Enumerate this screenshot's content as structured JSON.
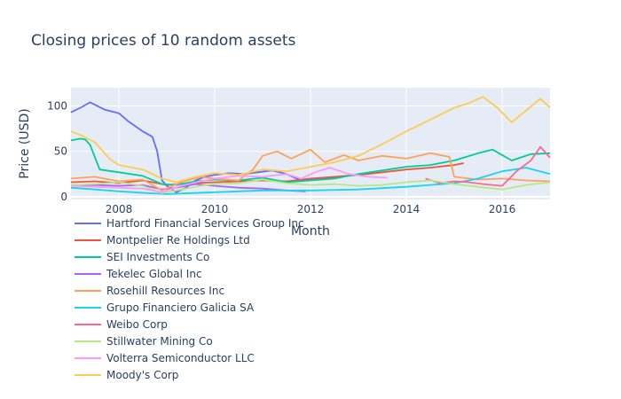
{
  "chart_data": {
    "type": "line",
    "title": "Closing prices of 10 random assets",
    "xlabel": "Month",
    "ylabel": "Price (USD)",
    "xlim": [
      2007.0,
      2017.0
    ],
    "ylim": [
      -3,
      120
    ],
    "x_ticks": [
      2008,
      2010,
      2012,
      2014,
      2016
    ],
    "y_ticks": [
      0,
      50,
      100
    ],
    "grid": true,
    "legend_position": "bottom-left",
    "series": [
      {
        "name": "Hartford Financial Services Group Inc",
        "color": "#636efa",
        "x": [
          2007.0,
          2007.2,
          2007.4,
          2007.7,
          2008.0,
          2008.2,
          2008.5,
          2008.7,
          2008.8,
          2008.9,
          2009.0,
          2009.2,
          2009.4,
          2009.6,
          2009.8,
          2010.0,
          2010.3,
          2010.6,
          2010.9,
          2011.2,
          2011.5,
          2011.8,
          2012.2,
          2012.6
        ],
        "y": [
          93,
          98,
          104,
          96,
          92,
          83,
          72,
          66,
          50,
          18,
          12,
          5,
          10,
          18,
          22,
          24,
          26,
          25,
          27,
          29,
          25,
          18,
          20,
          21
        ]
      },
      {
        "name": "Montpelier Re Holdings Ltd",
        "color": "#EF553B",
        "x": [
          2007.0,
          2007.5,
          2008.0,
          2008.5,
          2009.0,
          2009.5,
          2010.0,
          2010.5,
          2011.0,
          2011.5,
          2012.0,
          2012.5,
          2013.0,
          2013.5,
          2014.0,
          2014.5,
          2015.0,
          2015.2
        ],
        "y": [
          16,
          17,
          15,
          18,
          13,
          15,
          16,
          17,
          18,
          17,
          20,
          22,
          24,
          27,
          30,
          32,
          35,
          37
        ]
      },
      {
        "name": "SEI Investments Co",
        "color": "#00cc96",
        "x": [
          2007.0,
          2007.2,
          2007.3,
          2007.4,
          2007.6,
          2008.0,
          2008.5,
          2008.9,
          2009.2,
          2009.6,
          2010.0,
          2010.5,
          2011.0,
          2011.5,
          2012.0,
          2012.5,
          2013.0,
          2013.5,
          2014.0,
          2014.5,
          2015.0,
          2015.5,
          2015.8,
          2016.2,
          2016.6,
          2017.0
        ],
        "y": [
          62,
          64,
          63,
          57,
          30,
          27,
          23,
          14,
          13,
          17,
          19,
          18,
          21,
          16,
          18,
          20,
          25,
          29,
          33,
          35,
          40,
          48,
          52,
          40,
          47,
          48
        ]
      },
      {
        "name": "Tekelec Global Inc",
        "color": "#ab63fa",
        "x": [
          2007.0,
          2007.5,
          2008.0,
          2008.5,
          2008.9,
          2009.2,
          2009.6,
          2010.0,
          2010.5,
          2011.0,
          2011.5,
          2011.9
        ],
        "y": [
          12,
          13,
          12,
          13,
          8,
          10,
          14,
          12,
          10,
          9,
          7,
          6
        ]
      },
      {
        "name": "Rosehill Resources Inc",
        "color": "#FFA15A",
        "x": [
          2007.0,
          2007.5,
          2008.0,
          2008.5,
          2008.9,
          2009.3,
          2009.7,
          2010.0,
          2010.5,
          2010.8,
          2011.0,
          2011.3,
          2011.6,
          2012.0,
          2012.3,
          2012.7,
          2013.0,
          2013.5,
          2014.0,
          2014.5,
          2014.9,
          2015.0,
          2015.5,
          2016.0,
          2016.5,
          2017.0
        ],
        "y": [
          20,
          22,
          17,
          19,
          7,
          16,
          22,
          20,
          18,
          30,
          45,
          50,
          42,
          52,
          38,
          46,
          40,
          45,
          42,
          48,
          44,
          22,
          19,
          20,
          18,
          17
        ]
      },
      {
        "name": "Grupo Financiero Galicia SA",
        "color": "#19d3f3",
        "x": [
          2007.0,
          2007.5,
          2008.0,
          2008.6,
          2009.0,
          2009.5,
          2010.0,
          2010.5,
          2011.0,
          2012.0,
          2013.0,
          2014.0,
          2014.5,
          2015.0,
          2015.5,
          2016.0,
          2016.5,
          2017.0
        ],
        "y": [
          10,
          8,
          6,
          4,
          3,
          4,
          5,
          6,
          7,
          7,
          8,
          11,
          13,
          15,
          20,
          28,
          32,
          25
        ]
      },
      {
        "name": "Weibo Corp",
        "color": "#FF6692",
        "x": [
          2014.4,
          2014.7,
          2015.0,
          2015.3,
          2015.6,
          2016.0,
          2016.3,
          2016.6,
          2016.8,
          2017.0
        ],
        "y": [
          20,
          15,
          17,
          16,
          14,
          12,
          28,
          40,
          55,
          43
        ]
      },
      {
        "name": "Stillwater Mining Co",
        "color": "#B6E880",
        "x": [
          2007.0,
          2007.5,
          2008.0,
          2008.5,
          2008.9,
          2009.3,
          2009.7,
          2010.0,
          2010.5,
          2011.0,
          2011.5,
          2012.0,
          2012.5,
          2013.0,
          2013.5,
          2014.0,
          2014.5,
          2015.0,
          2015.5,
          2016.0,
          2016.5,
          2017.0
        ],
        "y": [
          13,
          14,
          16,
          12,
          4,
          8,
          12,
          14,
          15,
          19,
          15,
          13,
          14,
          12,
          13,
          16,
          18,
          14,
          11,
          8,
          13,
          16
        ]
      },
      {
        "name": "Volterra Semiconductor LLC",
        "color": "#FF97FF",
        "x": [
          2007.0,
          2007.5,
          2008.0,
          2008.5,
          2008.9,
          2009.3,
          2009.7,
          2010.0,
          2010.5,
          2011.0,
          2011.5,
          2011.8,
          2012.1,
          2012.4,
          2012.8,
          2013.2,
          2013.6
        ],
        "y": [
          12,
          11,
          10,
          9,
          5,
          12,
          17,
          20,
          23,
          22,
          25,
          20,
          27,
          32,
          25,
          22,
          21
        ]
      },
      {
        "name": "Moody's Corp",
        "color": "#FECB52",
        "x": [
          2007.0,
          2007.2,
          2007.5,
          2007.8,
          2008.0,
          2008.5,
          2008.9,
          2009.2,
          2009.6,
          2010.0,
          2010.5,
          2011.0,
          2011.5,
          2012.0,
          2012.5,
          2013.0,
          2013.5,
          2014.0,
          2014.5,
          2015.0,
          2015.3,
          2015.6,
          2015.9,
          2016.2,
          2016.5,
          2016.8,
          2017.0
        ],
        "y": [
          72,
          68,
          60,
          42,
          35,
          30,
          20,
          16,
          22,
          26,
          24,
          30,
          28,
          33,
          38,
          45,
          58,
          72,
          85,
          98,
          103,
          110,
          98,
          82,
          95,
          108,
          98
        ]
      }
    ]
  }
}
